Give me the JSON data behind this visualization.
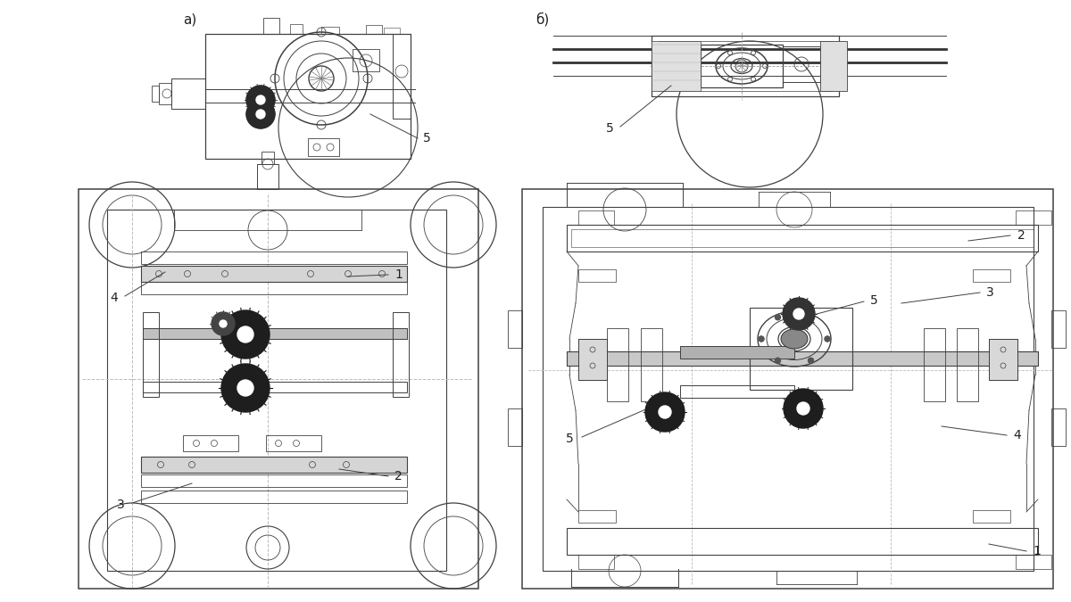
{
  "background_color": "#ffffff",
  "fig_width": 12.0,
  "fig_height": 6.75,
  "dpi": 100,
  "drawing_lines_color": "#404040",
  "annotation_color": "#202020"
}
